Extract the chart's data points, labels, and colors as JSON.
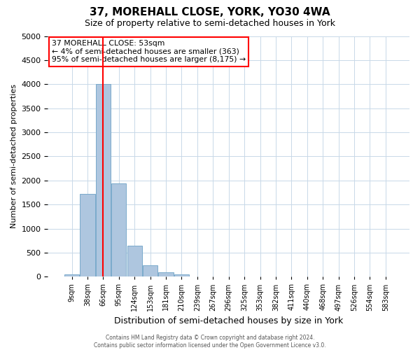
{
  "title": "37, MOREHALL CLOSE, YORK, YO30 4WA",
  "subtitle": "Size of property relative to semi-detached houses in York",
  "bar_labels": [
    "9sqm",
    "38sqm",
    "66sqm",
    "95sqm",
    "124sqm",
    "153sqm",
    "181sqm",
    "210sqm",
    "239sqm",
    "267sqm",
    "296sqm",
    "325sqm",
    "353sqm",
    "382sqm",
    "411sqm",
    "440sqm",
    "468sqm",
    "497sqm",
    "526sqm",
    "554sqm",
    "583sqm"
  ],
  "bar_heights": [
    50,
    1720,
    4010,
    1940,
    650,
    240,
    95,
    50,
    0,
    0,
    0,
    0,
    0,
    0,
    0,
    0,
    0,
    0,
    0,
    0,
    0
  ],
  "bar_color": "#aec6df",
  "bar_edge_color": "#7aaacb",
  "grid_color": "#c8d8e8",
  "background_color": "#ffffff",
  "vline_x": 1.97,
  "vline_color": "red",
  "ylim": [
    0,
    5000
  ],
  "yticks": [
    0,
    500,
    1000,
    1500,
    2000,
    2500,
    3000,
    3500,
    4000,
    4500,
    5000
  ],
  "ylabel": "Number of semi-detached properties",
  "xlabel": "Distribution of semi-detached houses by size in York",
  "annotation_title": "37 MOREHALL CLOSE: 53sqm",
  "annotation_line1": "← 4% of semi-detached houses are smaller (363)",
  "annotation_line2": "95% of semi-detached houses are larger (8,175) →",
  "annotation_box_color": "#ffffff",
  "annotation_box_edge_color": "red",
  "footer_line1": "Contains HM Land Registry data © Crown copyright and database right 2024.",
  "footer_line2": "Contains public sector information licensed under the Open Government Licence v3.0."
}
